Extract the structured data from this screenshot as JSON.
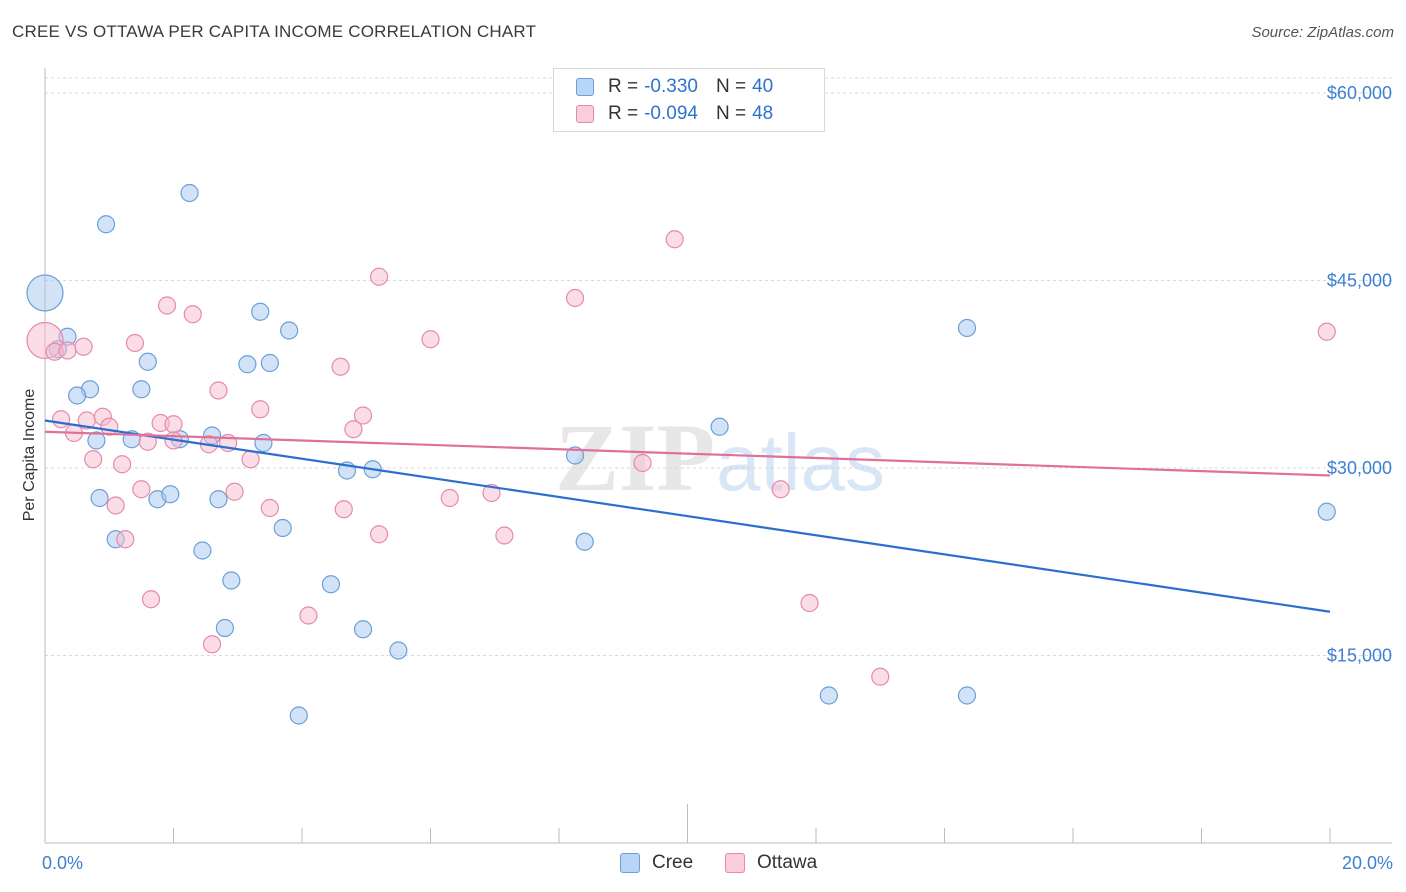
{
  "title": "CREE VS OTTAWA PER CAPITA INCOME CORRELATION CHART",
  "source": "Source: ZipAtlas.com",
  "watermark": "ZIPatlas",
  "colors": {
    "cree_fill": "#a8c8f0",
    "cree_stroke": "#6a9fd8",
    "cree_line": "#2a6fd0",
    "ottawa_fill": "#f6bcd0",
    "ottawa_stroke": "#e68aa8",
    "ottawa_line": "#e0709a",
    "tick_text": "#3d7fd0",
    "grid": "#d9d9d9"
  },
  "legend": {
    "rows": [
      {
        "r_label": "R =",
        "r_value": "-0.330",
        "n_label": "N =",
        "n_value": "40"
      },
      {
        "r_label": "R =",
        "r_value": "-0.094",
        "n_label": "N =",
        "n_value": "48"
      }
    ]
  },
  "bottom_legend": [
    "Cree",
    "Ottawa"
  ],
  "chart_data": {
    "type": "scatter",
    "title": "CREE VS OTTAWA PER CAPITA INCOME CORRELATION CHART",
    "xlabel": "",
    "ylabel": "Per Capita Income",
    "xlim": [
      0,
      20
    ],
    "ylim": [
      0,
      62000
    ],
    "y_ticks": [
      15000,
      30000,
      45000,
      60000
    ],
    "y_tick_labels": [
      "$15,000",
      "$30,000",
      "$45,000",
      "$60,000"
    ],
    "x_tick_labels": [
      "0.0%",
      "20.0%"
    ],
    "grid": true,
    "series": [
      {
        "name": "Cree",
        "trend": {
          "x": [
            0,
            20
          ],
          "y": [
            33800,
            18500
          ]
        },
        "points": [
          {
            "x": 0.0,
            "y": 44000,
            "big": true
          },
          {
            "x": 0.95,
            "y": 49500
          },
          {
            "x": 2.25,
            "y": 52000
          },
          {
            "x": 0.35,
            "y": 40500
          },
          {
            "x": 0.2,
            "y": 39500
          },
          {
            "x": 1.6,
            "y": 38500
          },
          {
            "x": 0.7,
            "y": 36300
          },
          {
            "x": 0.5,
            "y": 35800
          },
          {
            "x": 1.5,
            "y": 36300
          },
          {
            "x": 3.35,
            "y": 42500
          },
          {
            "x": 3.8,
            "y": 41000
          },
          {
            "x": 3.15,
            "y": 38300
          },
          {
            "x": 3.5,
            "y": 38400
          },
          {
            "x": 0.8,
            "y": 32200
          },
          {
            "x": 1.35,
            "y": 32300
          },
          {
            "x": 2.1,
            "y": 32300
          },
          {
            "x": 2.6,
            "y": 32600
          },
          {
            "x": 3.4,
            "y": 32000
          },
          {
            "x": 0.85,
            "y": 27600
          },
          {
            "x": 1.75,
            "y": 27500
          },
          {
            "x": 1.95,
            "y": 27900
          },
          {
            "x": 2.7,
            "y": 27500
          },
          {
            "x": 1.1,
            "y": 24300
          },
          {
            "x": 2.45,
            "y": 23400
          },
          {
            "x": 3.7,
            "y": 25200
          },
          {
            "x": 4.7,
            "y": 29800
          },
          {
            "x": 5.1,
            "y": 29900
          },
          {
            "x": 2.9,
            "y": 21000
          },
          {
            "x": 4.45,
            "y": 20700
          },
          {
            "x": 2.8,
            "y": 17200
          },
          {
            "x": 4.95,
            "y": 17100
          },
          {
            "x": 5.5,
            "y": 15400
          },
          {
            "x": 3.95,
            "y": 10200
          },
          {
            "x": 8.25,
            "y": 31000
          },
          {
            "x": 10.5,
            "y": 33300
          },
          {
            "x": 8.4,
            "y": 24100
          },
          {
            "x": 14.35,
            "y": 41200
          },
          {
            "x": 12.2,
            "y": 11800
          },
          {
            "x": 14.35,
            "y": 11800
          },
          {
            "x": 19.95,
            "y": 26500
          }
        ]
      },
      {
        "name": "Ottawa",
        "trend": {
          "x": [
            0,
            20
          ],
          "y": [
            32900,
            29400
          ]
        },
        "points": [
          {
            "x": 0.0,
            "y": 40200,
            "big": true
          },
          {
            "x": 0.15,
            "y": 39300
          },
          {
            "x": 0.35,
            "y": 39400
          },
          {
            "x": 0.6,
            "y": 39700
          },
          {
            "x": 1.4,
            "y": 40000
          },
          {
            "x": 1.9,
            "y": 43000
          },
          {
            "x": 2.3,
            "y": 42300
          },
          {
            "x": 5.2,
            "y": 45300
          },
          {
            "x": 6.0,
            "y": 40300
          },
          {
            "x": 8.25,
            "y": 43600
          },
          {
            "x": 9.8,
            "y": 48300
          },
          {
            "x": 4.6,
            "y": 38100
          },
          {
            "x": 2.7,
            "y": 36200
          },
          {
            "x": 3.35,
            "y": 34700
          },
          {
            "x": 0.25,
            "y": 33900
          },
          {
            "x": 0.45,
            "y": 32800
          },
          {
            "x": 0.65,
            "y": 33800
          },
          {
            "x": 0.9,
            "y": 34100
          },
          {
            "x": 1.0,
            "y": 33300
          },
          {
            "x": 1.8,
            "y": 33600
          },
          {
            "x": 2.0,
            "y": 33500
          },
          {
            "x": 1.6,
            "y": 32100
          },
          {
            "x": 2.55,
            "y": 31900
          },
          {
            "x": 2.85,
            "y": 32000
          },
          {
            "x": 4.95,
            "y": 34200
          },
          {
            "x": 4.8,
            "y": 33100
          },
          {
            "x": 0.75,
            "y": 30700
          },
          {
            "x": 1.2,
            "y": 30300
          },
          {
            "x": 3.2,
            "y": 30700
          },
          {
            "x": 1.5,
            "y": 28300
          },
          {
            "x": 2.95,
            "y": 28100
          },
          {
            "x": 1.1,
            "y": 27000
          },
          {
            "x": 3.5,
            "y": 26800
          },
          {
            "x": 4.65,
            "y": 26700
          },
          {
            "x": 6.3,
            "y": 27600
          },
          {
            "x": 6.95,
            "y": 28000
          },
          {
            "x": 9.3,
            "y": 30400
          },
          {
            "x": 11.45,
            "y": 28300
          },
          {
            "x": 1.25,
            "y": 24300
          },
          {
            "x": 5.2,
            "y": 24700
          },
          {
            "x": 7.15,
            "y": 24600
          },
          {
            "x": 1.65,
            "y": 19500
          },
          {
            "x": 4.1,
            "y": 18200
          },
          {
            "x": 11.9,
            "y": 19200
          },
          {
            "x": 2.6,
            "y": 15900
          },
          {
            "x": 13.0,
            "y": 13300
          },
          {
            "x": 19.95,
            "y": 40900
          },
          {
            "x": 2.0,
            "y": 32200
          }
        ]
      }
    ]
  }
}
